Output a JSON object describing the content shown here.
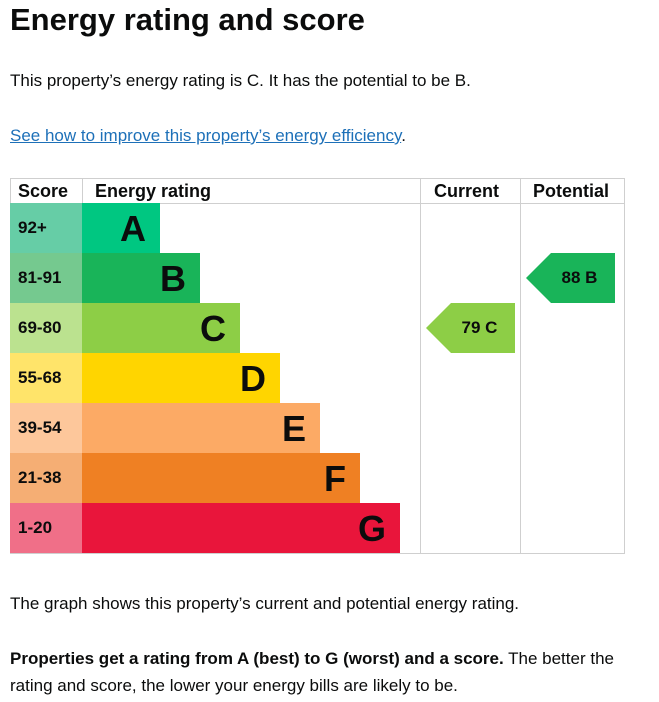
{
  "title": "Energy rating and score",
  "intro": "This property’s energy rating is C. It has the potential to be B.",
  "link": "See how to improve this property’s energy efficiency",
  "link_suffix": ".",
  "caption": "The graph shows this property’s current and potential energy rating.",
  "note_bold": "Properties get a rating from A (best) to G (worst) and a score.",
  "note_rest": " The better the rating and score, the lower your energy bills are likely to be.",
  "chart_data": {
    "type": "bar",
    "headers": {
      "score": "Score",
      "rating": "Energy rating",
      "current": "Current",
      "potential": "Potential"
    },
    "bands": [
      {
        "letter": "A",
        "range": "92+",
        "color": "#00c781",
        "light": "#66cda6"
      },
      {
        "letter": "B",
        "range": "81-91",
        "color": "#19b459",
        "light": "#75c98f"
      },
      {
        "letter": "C",
        "range": "69-80",
        "color": "#8dce46",
        "light": "#bbe28f"
      },
      {
        "letter": "D",
        "range": "55-68",
        "color": "#ffd500",
        "light": "#ffe46a"
      },
      {
        "letter": "E",
        "range": "39-54",
        "color": "#fcaa65",
        "light": "#fdc79b"
      },
      {
        "letter": "F",
        "range": "21-38",
        "color": "#ef8023",
        "light": "#f5ae74"
      },
      {
        "letter": "G",
        "range": "1-20",
        "color": "#e9153b",
        "light": "#f06f88"
      }
    ],
    "current": {
      "score": 79,
      "letter": "C",
      "label": "79  C"
    },
    "potential": {
      "score": 88,
      "letter": "B",
      "label": "88  B"
    }
  }
}
